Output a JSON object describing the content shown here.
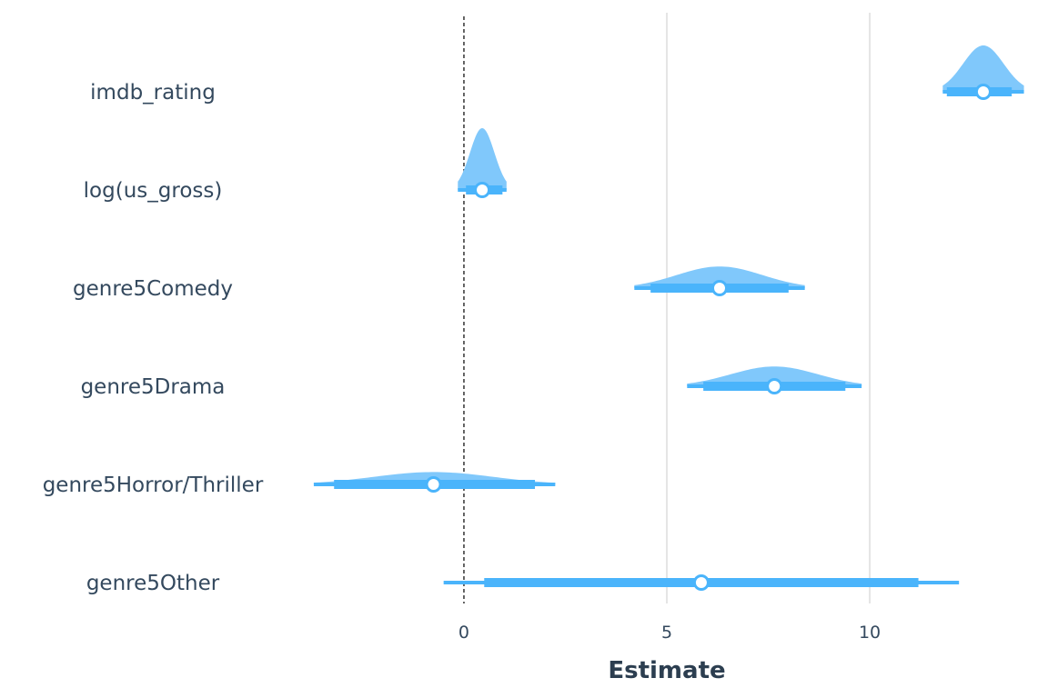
{
  "chart_data": {
    "type": "forest",
    "xlabel": "Estimate",
    "xlim": [
      -3.9,
      13.9
    ],
    "xticks": [
      0,
      5,
      10
    ],
    "reference_line": 0,
    "grid": "major vertical",
    "colors": {
      "density": "#80c8fb",
      "interval": "#4ab4fb",
      "text": "#34495e"
    },
    "rows": [
      {
        "label": "imdb_rating",
        "estimate": 12.8,
        "inner": [
          11.9,
          13.5
        ],
        "outer": [
          11.8,
          13.8
        ],
        "density_height": 0.75
      },
      {
        "label": "log(us_gross)",
        "estimate": 0.45,
        "inner": [
          0.05,
          0.95
        ],
        "outer": [
          -0.15,
          1.05
        ],
        "density_height": 1.0
      },
      {
        "label": "genre5Comedy",
        "estimate": 6.3,
        "inner": [
          4.6,
          8.0
        ],
        "outer": [
          4.2,
          8.4
        ],
        "density_height": 0.35
      },
      {
        "label": "genre5Drama",
        "estimate": 7.65,
        "inner": [
          5.9,
          9.4
        ],
        "outer": [
          5.5,
          9.8
        ],
        "density_height": 0.32
      },
      {
        "label": "genre5Horror/Thriller",
        "estimate": -0.75,
        "inner": [
          -3.2,
          1.75
        ],
        "outer": [
          -3.7,
          2.25
        ],
        "density_height": 0.2
      },
      {
        "label": "genre5Other",
        "estimate": 5.85,
        "inner": [
          0.5,
          11.2
        ],
        "outer": [
          -0.5,
          12.2
        ],
        "density_height": 0.03
      }
    ]
  }
}
